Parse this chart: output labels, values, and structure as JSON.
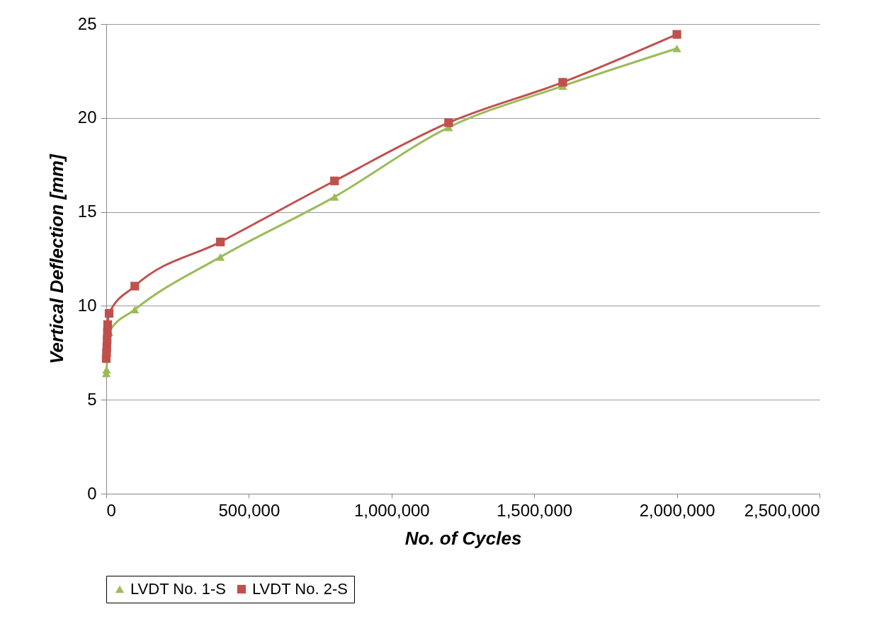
{
  "chart_data": {
    "type": "line",
    "xlabel": "No. of Cycles",
    "ylabel": "Vertical Deflection [mm]",
    "series": [
      {
        "name": "LVDT No. 1-S",
        "color": "#9bbb59",
        "marker": "triangle",
        "x": [
          0,
          1000,
          10000,
          100000,
          400000,
          800000,
          1200000,
          1600000,
          2000000
        ],
        "values": [
          6.4,
          6.6,
          8.6,
          9.8,
          12.6,
          15.8,
          19.5,
          21.7,
          23.7
        ]
      },
      {
        "name": "LVDT No. 2-S",
        "color": "#c0504d",
        "marker": "square",
        "x": [
          0,
          1000,
          2000,
          3000,
          4000,
          5000,
          10000,
          100000,
          400000,
          800000,
          1200000,
          1600000,
          2000000
        ],
        "values": [
          7.2,
          7.5,
          7.8,
          8.2,
          8.6,
          9.0,
          9.6,
          11.05,
          13.4,
          16.65,
          19.75,
          21.9,
          24.45
        ]
      }
    ],
    "xlim": [
      0,
      2500000
    ],
    "xticks": [
      {
        "value": 0,
        "label": "0"
      },
      {
        "value": 500000,
        "label": "500,000"
      },
      {
        "value": 1000000,
        "label": "1,000,000"
      },
      {
        "value": 1500000,
        "label": "1,500,000"
      },
      {
        "value": 2000000,
        "label": "2,000,000"
      },
      {
        "value": 2500000,
        "label": "2,500,000"
      }
    ],
    "ylim": [
      0,
      25
    ],
    "yticks": [
      0,
      5,
      10,
      15,
      20,
      25
    ],
    "grid": "y",
    "legend": "bottom",
    "line_style": "solid"
  }
}
